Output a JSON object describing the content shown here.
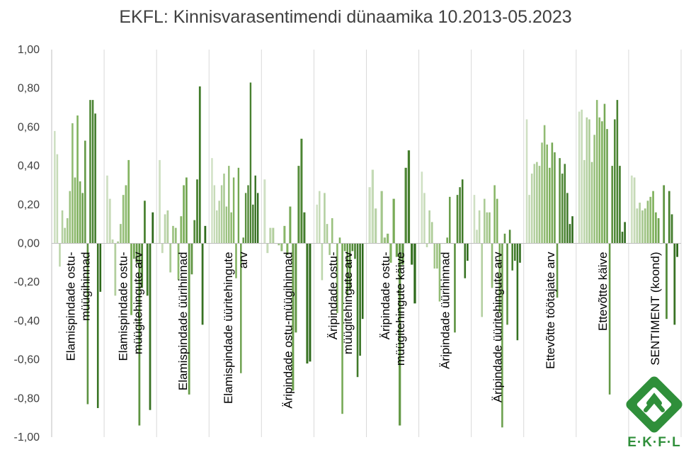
{
  "chart_data": {
    "type": "bar",
    "title": "EKFL: Kinnisvarasentimendi dünaamika 10.2013-05.2023",
    "xlabel": "",
    "ylabel": "",
    "ylim": [
      -1.0,
      1.0
    ],
    "yticks": [
      "1,00",
      "0,80",
      "0,60",
      "0,40",
      "0,20",
      "0,00",
      "-0,20",
      "-0,40",
      "-0,60",
      "-0,80",
      "-1,00"
    ],
    "grid": "vertical category separators",
    "legend": "none",
    "colors": {
      "light": "#cfe0c3",
      "mid": "#7fb15c",
      "dark": "#2e6a1b"
    },
    "categories": [
      "Elamispindade ostu-müügihinnad",
      "Elamispindade ostu-müügitehingute arv",
      "Elamispindade üürihinnad",
      "Elamispindade üüritehingute arv",
      "Äripindade ostu-müügihinnad",
      "Äripindade ostu-müügitehingute arv",
      "Äripindade ostu-müügitehingute käive",
      "Äripindade üürihinnad",
      "Äripindade üüritehingute arv",
      "Ettevõtte töötajate arv",
      "Ettevõtte käive",
      "SENTIMENT (koond)"
    ],
    "category_label_lines": [
      [
        "Elamispindade ostu-",
        "müügihinnad"
      ],
      [
        "Elamispindade ostu-",
        "müügitehingute arv"
      ],
      [
        "Elamispindade üürihinnad"
      ],
      [
        "Elamispindade üüritehingute",
        "arv"
      ],
      [
        "Äripindade ostu-müügihinnad"
      ],
      [
        "Äripindade ostu-",
        "müügitehingute arv"
      ],
      [
        "Äripindade ostu-",
        "müügitehingute käive"
      ],
      [
        "Äripindade üürihinnad"
      ],
      [
        "Äripindade üüritehingute arv"
      ],
      [
        "Ettevõtte töötajate arv"
      ],
      [
        "Ettevõtte käive"
      ],
      [
        "SENTIMENT (koond)"
      ]
    ],
    "values": [
      [
        0.58,
        0.46,
        -0.12,
        0.17,
        0.08,
        0.13,
        0.27,
        0.62,
        0.34,
        0.66,
        0.32,
        0.26,
        0.53,
        -0.83,
        0.74,
        0.74,
        0.67,
        -0.85,
        -0.25
      ],
      [
        0.35,
        0.23,
        0.02,
        -0.27,
        0.01,
        0.1,
        0.25,
        0.3,
        0.43,
        -0.37,
        -0.08,
        -0.1,
        -0.94,
        -0.23,
        0.22,
        -0.27,
        -0.86,
        0.16
      ],
      [
        0.43,
        -0.05,
        0.15,
        0.17,
        -0.15,
        0.09,
        0.08,
        -0.19,
        0.14,
        0.3,
        0.34,
        -0.78,
        -0.16,
        0.12,
        0.33,
        0.81,
        -0.42,
        0.09
      ],
      [
        0.44,
        0.3,
        0.17,
        0.22,
        0.3,
        0.36,
        0.19,
        0.4,
        0.16,
        0.34,
        -0.18,
        0.39,
        -0.67,
        0.03,
        0.26,
        0.3,
        0.83,
        0.2,
        0.35,
        0.26
      ],
      [
        0.33,
        -0.05,
        0.08,
        0.08,
        0.0,
        -0.01,
        -0.04,
        0.09,
        -0.06,
        0.19,
        -0.76,
        -0.46,
        0.4,
        0.54,
        0.16,
        -0.62,
        -0.61
      ],
      [
        0.2,
        0.27,
        -0.19,
        0.26,
        0.1,
        -0.06,
        0.13,
        0.0,
        -0.36,
        0.03,
        -0.88,
        -0.04,
        -0.27,
        -0.24,
        -0.04,
        -0.08,
        -0.69,
        -0.58,
        -0.39
      ],
      [
        0.29,
        0.38,
        0.18,
        0.0,
        0.27,
        0.03,
        0.05,
        -0.1,
        0.23,
        -0.07,
        -0.94,
        -0.11,
        0.39,
        0.48,
        -0.11,
        -0.31
      ],
      [
        0.37,
        0.26,
        -0.02,
        0.17,
        0.11,
        -0.13,
        -0.13,
        -0.3,
        0.0,
        0.0,
        0.03,
        0.24,
        0.0,
        -0.46,
        0.25,
        0.29,
        0.33,
        -0.18,
        -0.09
      ],
      [
        0.25,
        0.07,
        0.17,
        -0.38,
        0.23,
        0.16,
        0.16,
        -0.23,
        0.3,
        0.23,
        -0.36,
        -0.95,
        0.05,
        -0.42,
        0.07,
        -0.14,
        -0.09,
        -0.5,
        -0.1
      ],
      [
        0.64,
        0.25,
        0.36,
        0.41,
        0.42,
        0.4,
        0.52,
        0.61,
        0.51,
        0.39,
        0.52,
        0.47,
        -0.28,
        0.44,
        0.36,
        0.41,
        0.26,
        0.1,
        0.14
      ],
      [
        0.68,
        0.69,
        0.43,
        0.65,
        0.64,
        0.42,
        0.56,
        0.74,
        0.65,
        0.63,
        0.72,
        0.59,
        -0.78,
        0.4,
        0.64,
        0.74,
        0.4,
        0.06,
        0.11
      ],
      [
        0.35,
        0.34,
        0.18,
        0.21,
        0.17,
        0.18,
        0.22,
        0.24,
        0.27,
        0.16,
        0.13,
        0.0,
        0.3,
        -0.39,
        0.27,
        0.15,
        -0.42,
        -0.07
      ]
    ]
  },
  "logo": {
    "text": "E·K·F·L"
  }
}
